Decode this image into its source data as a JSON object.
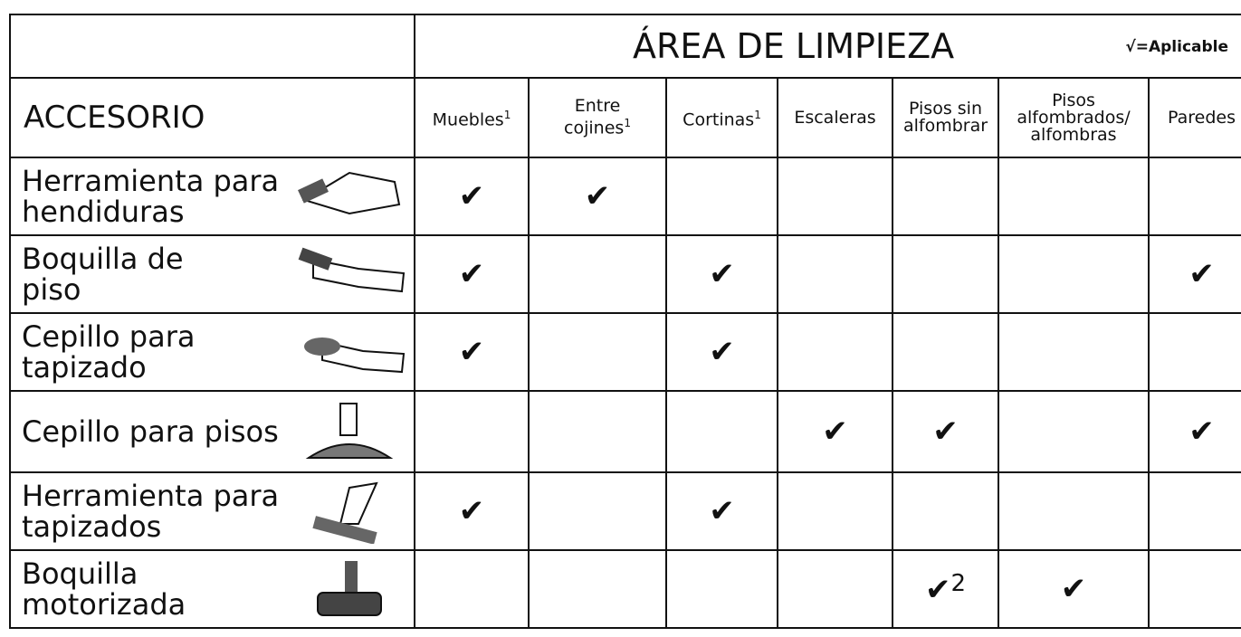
{
  "table": {
    "title": "ÁREA DE LIMPIEZA",
    "legend": "√=Aplicable",
    "row_header": "ACCESORIO",
    "columns": [
      {
        "lines": [
          "Muebles"
        ],
        "note": "1"
      },
      {
        "lines": [
          "Entre",
          "cojines"
        ],
        "note": "1"
      },
      {
        "lines": [
          "Cortinas"
        ],
        "note": "1"
      },
      {
        "lines": [
          "Escaleras"
        ]
      },
      {
        "lines": [
          "Pisos sin",
          "alfombrar"
        ]
      },
      {
        "lines": [
          "Pisos",
          "alfombrados/",
          "alfombras"
        ]
      },
      {
        "lines": [
          "Paredes"
        ]
      }
    ],
    "rows": [
      {
        "name": [
          "Herramienta para",
          "hendiduras"
        ],
        "cells": [
          "✔",
          "✔",
          null,
          null,
          null,
          null,
          null
        ]
      },
      {
        "name": [
          "Boquilla de",
          "piso"
        ],
        "cells": [
          "✔",
          null,
          "✔",
          null,
          null,
          null,
          "✔"
        ]
      },
      {
        "name": [
          "Cepillo para",
          "tapizado"
        ],
        "cells": [
          "✔",
          null,
          "✔",
          null,
          null,
          null,
          null
        ]
      },
      {
        "name": [
          "Cepillo para pisos"
        ],
        "cells": [
          null,
          null,
          null,
          "✔",
          "✔",
          null,
          "✔"
        ]
      },
      {
        "name": [
          "Herramienta para",
          "tapizados"
        ],
        "cells": [
          "✔",
          null,
          "✔",
          null,
          null,
          null,
          null
        ]
      },
      {
        "name": [
          "Boquilla",
          "motorizada"
        ],
        "cells": [
          null,
          null,
          null,
          null,
          {
            "text": "✔",
            "note": "2"
          },
          "✔",
          null
        ]
      }
    ]
  }
}
